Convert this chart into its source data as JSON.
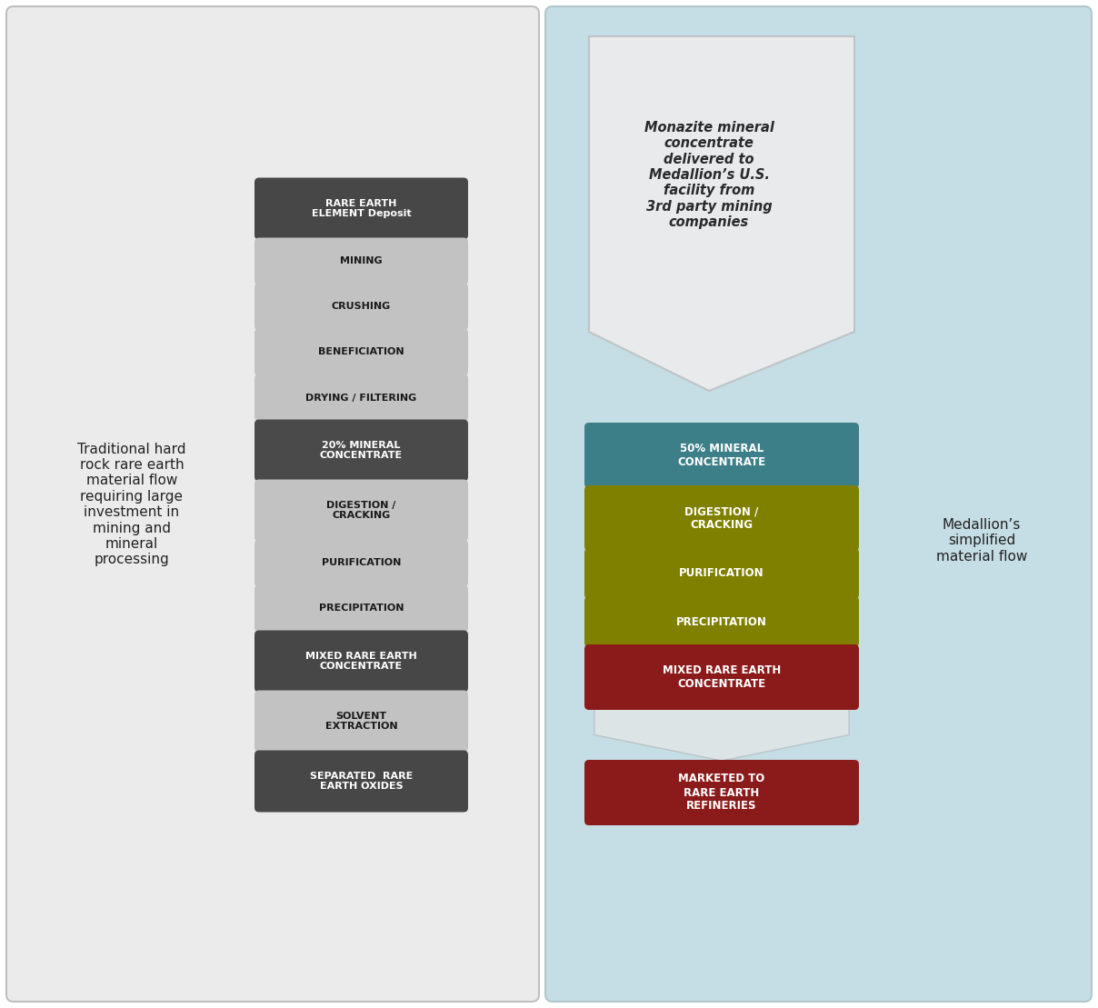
{
  "fig_width": 12.08,
  "fig_height": 11.09,
  "left_bg": "#ebebeb",
  "right_bg": "#c5dde4",
  "left_label": "Traditional hard\nrock rare earth\nmaterial flow\nrequiring large\ninvestment in\nmining and\nmineral\nprocessing",
  "right_label": "Medallion’s\nsimplified\nmaterial flow",
  "left_boxes": [
    {
      "label": "RARE EARTH\nELEMENT Deposit",
      "color": "#474747",
      "text_color": "#ffffff",
      "lines": 2
    },
    {
      "label": "MINING",
      "color": "#c2c2c2",
      "text_color": "#1a1a1a",
      "lines": 1
    },
    {
      "label": "CRUSHING",
      "color": "#c2c2c2",
      "text_color": "#1a1a1a",
      "lines": 1
    },
    {
      "label": "BENEFICIATION",
      "color": "#c2c2c2",
      "text_color": "#1a1a1a",
      "lines": 1
    },
    {
      "label": "DRYING / FILTERING",
      "color": "#c2c2c2",
      "text_color": "#1a1a1a",
      "lines": 1
    },
    {
      "label": "20% MINERAL\nCONCENTRATE",
      "color": "#4a4a4a",
      "text_color": "#ffffff",
      "lines": 2
    },
    {
      "label": "DIGESTION /\nCRACKING",
      "color": "#c2c2c2",
      "text_color": "#1a1a1a",
      "lines": 2
    },
    {
      "label": "PURIFICATION",
      "color": "#c2c2c2",
      "text_color": "#1a1a1a",
      "lines": 1
    },
    {
      "label": "PRECIPITATION",
      "color": "#c2c2c2",
      "text_color": "#1a1a1a",
      "lines": 1
    },
    {
      "label": "MIXED RARE EARTH\nCONCENTRATE",
      "color": "#474747",
      "text_color": "#ffffff",
      "lines": 2
    },
    {
      "label": "SOLVENT\nEXTRACTION",
      "color": "#c2c2c2",
      "text_color": "#1a1a1a",
      "lines": 2
    },
    {
      "label": "SEPARATED  RARE\nEARTH OXIDES",
      "color": "#474747",
      "text_color": "#ffffff",
      "lines": 2
    }
  ],
  "right_arrow_text": "Monazite mineral\nconcentrate\ndelivered to\nMedallion’s U.S.\nfacility from\n3rd party mining\ncompanies",
  "right_boxes": [
    {
      "label": "50% MINERAL\nCONCENTRATE",
      "color": "#3d7f88",
      "text_color": "#ffffff",
      "lines": 2
    },
    {
      "label": "DIGESTION /\nCRACKING",
      "color": "#808000",
      "text_color": "#ffffff",
      "lines": 2
    },
    {
      "label": "PURIFICATION",
      "color": "#808000",
      "text_color": "#ffffff",
      "lines": 1
    },
    {
      "label": "PRECIPITATION",
      "color": "#808000",
      "text_color": "#ffffff",
      "lines": 1
    },
    {
      "label": "MIXED RARE EARTH\nCONCENTRATE",
      "color": "#8b1a1a",
      "text_color": "#ffffff",
      "lines": 2
    },
    {
      "label": "MARKETED TO\nRARE EARTH\nREFINERIES",
      "color": "#8b1a1a",
      "text_color": "#ffffff",
      "lines": 3
    }
  ]
}
